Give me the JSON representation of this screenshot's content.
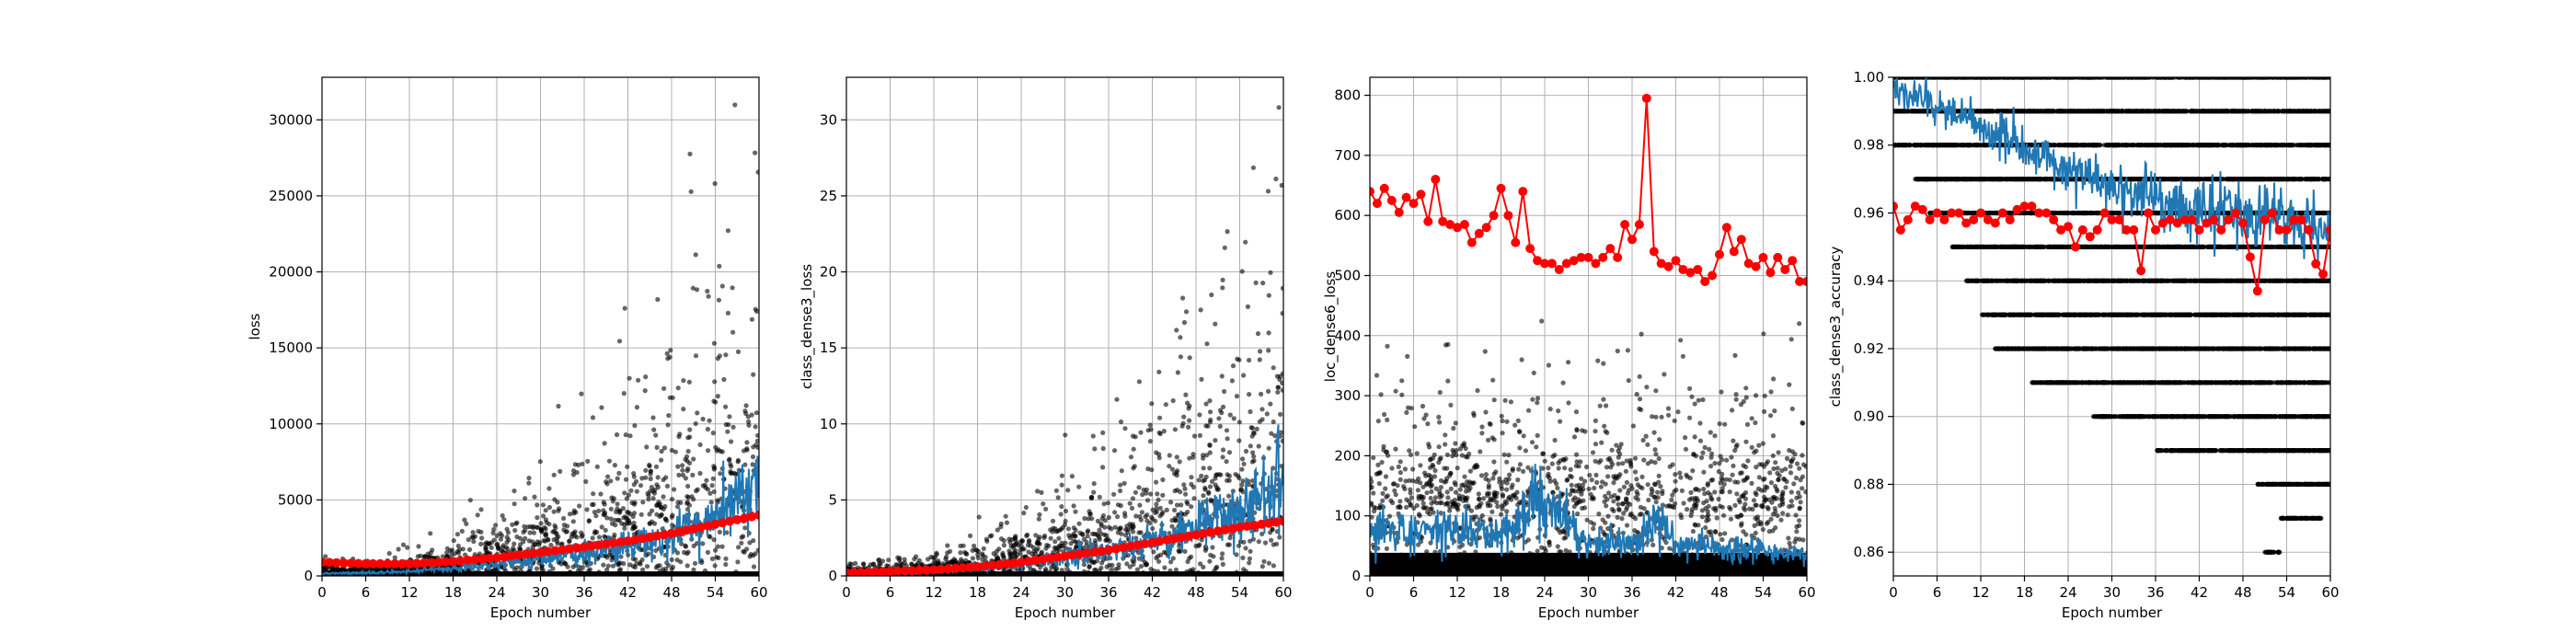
{
  "chart_data": [
    {
      "type": "scatter",
      "xlabel": "Epoch number",
      "ylabel": "loss",
      "xlim": [
        0,
        60
      ],
      "ylim": [
        0,
        32800
      ],
      "xticks": [
        0,
        6,
        12,
        18,
        24,
        30,
        36,
        42,
        48,
        54,
        60
      ],
      "yticks": [
        0,
        5000,
        10000,
        15000,
        20000,
        25000,
        30000
      ],
      "grid": true,
      "scatter_cloud": {
        "color": "#000000",
        "description_values": {
          "x_start": 0,
          "x_end": 60,
          "center_start": 200,
          "center_end": 5500,
          "spread_start": 300,
          "spread_end": 9000,
          "max": 31000
        }
      },
      "series": [
        {
          "values_type": "running",
          "color": "#1f77b4",
          "x": [
            0,
            6,
            12,
            18,
            24,
            30,
            36,
            42,
            48,
            54,
            57,
            60
          ],
          "y": [
            150,
            200,
            300,
            500,
            800,
            1100,
            1500,
            2000,
            2800,
            3800,
            5000,
            6000
          ]
        },
        {
          "values_type": "epoch",
          "color": "#ff0000",
          "x": [
            0,
            6,
            12,
            18,
            24,
            30,
            36,
            42,
            48,
            54,
            60
          ],
          "y": [
            900,
            800,
            800,
            950,
            1200,
            1550,
            1900,
            2300,
            2800,
            3400,
            4000
          ]
        }
      ]
    },
    {
      "type": "scatter",
      "xlabel": "Epoch number",
      "ylabel": "class_dense3_loss",
      "xlim": [
        0,
        60
      ],
      "ylim": [
        0,
        32.8
      ],
      "xticks": [
        0,
        6,
        12,
        18,
        24,
        30,
        36,
        42,
        48,
        54,
        60
      ],
      "yticks": [
        0,
        5,
        10,
        15,
        20,
        25,
        30
      ],
      "grid": true,
      "scatter_cloud": {
        "color": "#000000",
        "description_values": {
          "x_start": 0,
          "x_end": 60,
          "center_start": 0.2,
          "center_end": 5.5,
          "spread_start": 0.3,
          "spread_end": 9,
          "max": 31
        }
      },
      "series": [
        {
          "values_type": "running",
          "color": "#1f77b4",
          "x": [
            0,
            6,
            12,
            18,
            24,
            30,
            36,
            42,
            48,
            54,
            57,
            60
          ],
          "y": [
            0.1,
            0.2,
            0.3,
            0.5,
            0.8,
            1.2,
            1.7,
            2.3,
            3.2,
            4.3,
            5.5,
            6.5
          ]
        },
        {
          "values_type": "epoch",
          "color": "#ff0000",
          "x": [
            0,
            6,
            12,
            18,
            24,
            30,
            36,
            42,
            48,
            54,
            60
          ],
          "y": [
            0.2,
            0.3,
            0.4,
            0.6,
            0.9,
            1.3,
            1.7,
            2.2,
            2.7,
            3.2,
            3.6
          ]
        }
      ]
    },
    {
      "type": "scatter",
      "xlabel": "Epoch number",
      "ylabel": "loc_dense6_loss",
      "xlim": [
        0,
        60
      ],
      "ylim": [
        0,
        830
      ],
      "xticks": [
        0,
        6,
        12,
        18,
        24,
        30,
        36,
        42,
        48,
        54,
        60
      ],
      "yticks": [
        0,
        100,
        200,
        300,
        400,
        500,
        600,
        700,
        800
      ],
      "grid": true,
      "scatter_cloud": {
        "color": "#000000",
        "description_values": {
          "center": 110,
          "spread": 90,
          "max": 440
        }
      },
      "series": [
        {
          "values_type": "running",
          "color": "#1f77b4",
          "x": [
            0,
            6,
            12,
            18,
            24,
            30,
            36,
            40,
            42,
            48,
            54,
            60
          ],
          "y": [
            70,
            80,
            75,
            70,
            130,
            55,
            50,
            100,
            50,
            45,
            40,
            35
          ]
        },
        {
          "values_type": "epoch",
          "color": "#ff0000",
          "x": [
            0,
            1,
            2,
            3,
            4,
            5,
            6,
            7,
            8,
            9,
            10,
            11,
            12,
            13,
            14,
            15,
            16,
            17,
            18,
            19,
            20,
            21,
            22,
            23,
            24,
            25,
            26,
            27,
            28,
            29,
            30,
            31,
            32,
            33,
            34,
            35,
            36,
            37,
            38,
            39,
            40,
            41,
            42,
            43,
            44,
            45,
            46,
            47,
            48,
            49,
            50,
            51,
            52,
            53,
            54,
            55,
            56,
            57,
            58,
            59,
            60
          ],
          "y": [
            640,
            620,
            645,
            625,
            605,
            630,
            620,
            635,
            590,
            660,
            590,
            585,
            580,
            585,
            555,
            570,
            580,
            600,
            645,
            600,
            555,
            640,
            545,
            525,
            520,
            520,
            510,
            520,
            525,
            530,
            530,
            520,
            530,
            545,
            530,
            585,
            560,
            585,
            795,
            540,
            520,
            515,
            525,
            510,
            505,
            510,
            490,
            500,
            535,
            580,
            540,
            560,
            520,
            515,
            530,
            505,
            530,
            510,
            525,
            490,
            490
          ]
        }
      ]
    },
    {
      "type": "scatter",
      "xlabel": "Epoch number",
      "ylabel": "class_dense3_accuracy",
      "xlim": [
        0,
        60
      ],
      "ylim": [
        0.853,
        1.0
      ],
      "xticks": [
        0,
        6,
        12,
        18,
        24,
        30,
        36,
        42,
        48,
        54,
        60
      ],
      "yticks": [
        0.86,
        0.88,
        0.9,
        0.92,
        0.94,
        0.96,
        0.98,
        1.0
      ],
      "ytick_labels": [
        "0.86",
        "0.88",
        "0.90",
        "0.92",
        "0.94",
        "0.96",
        "0.98",
        "1.00"
      ],
      "grid": true,
      "scatter_cloud": {
        "color": "#000000",
        "levels": [
          {
            "y": 1.0,
            "x_start": 0,
            "x_end": 60
          },
          {
            "y": 0.99,
            "x_start": 0,
            "x_end": 60
          },
          {
            "y": 0.98,
            "x_start": 0,
            "x_end": 60
          },
          {
            "y": 0.97,
            "x_start": 3,
            "x_end": 60
          },
          {
            "y": 0.96,
            "x_start": 5,
            "x_end": 60
          },
          {
            "y": 0.95,
            "x_start": 8,
            "x_end": 60
          },
          {
            "y": 0.94,
            "x_start": 10,
            "x_end": 60
          },
          {
            "y": 0.93,
            "x_start": 12,
            "x_end": 60
          },
          {
            "y": 0.92,
            "x_start": 14,
            "x_end": 60
          },
          {
            "y": 0.91,
            "x_start": 19,
            "x_end": 60
          },
          {
            "y": 0.9,
            "x_start": 27,
            "x_end": 60
          },
          {
            "y": 0.89,
            "x_start": 36,
            "x_end": 60
          },
          {
            "y": 0.88,
            "x_start": 50,
            "x_end": 60
          },
          {
            "y": 0.87,
            "x_start": 53,
            "x_end": 59
          },
          {
            "y": 0.86,
            "x_start": 51,
            "x_end": 53
          }
        ]
      },
      "series": [
        {
          "values_type": "running",
          "color": "#1f77b4",
          "x": [
            0,
            6,
            12,
            18,
            24,
            30,
            36,
            42,
            48,
            54,
            60
          ],
          "y": [
            0.997,
            0.992,
            0.986,
            0.979,
            0.973,
            0.968,
            0.964,
            0.961,
            0.959,
            0.957,
            0.955
          ]
        },
        {
          "values_type": "epoch",
          "color": "#ff0000",
          "x": [
            0,
            1,
            2,
            3,
            4,
            5,
            6,
            7,
            8,
            9,
            10,
            11,
            12,
            13,
            14,
            15,
            16,
            17,
            18,
            19,
            20,
            21,
            22,
            23,
            24,
            25,
            26,
            27,
            28,
            29,
            30,
            31,
            32,
            33,
            34,
            35,
            36,
            37,
            38,
            39,
            40,
            41,
            42,
            43,
            44,
            45,
            46,
            47,
            48,
            49,
            50,
            51,
            52,
            53,
            54,
            55,
            56,
            57,
            58,
            59,
            60
          ],
          "y": [
            0.962,
            0.955,
            0.958,
            0.962,
            0.961,
            0.958,
            0.96,
            0.958,
            0.96,
            0.96,
            0.957,
            0.958,
            0.96,
            0.958,
            0.957,
            0.96,
            0.958,
            0.961,
            0.962,
            0.962,
            0.96,
            0.96,
            0.958,
            0.955,
            0.956,
            0.95,
            0.955,
            0.953,
            0.955,
            0.96,
            0.958,
            0.958,
            0.955,
            0.955,
            0.943,
            0.96,
            0.955,
            0.957,
            0.958,
            0.957,
            0.958,
            0.958,
            0.955,
            0.957,
            0.958,
            0.955,
            0.958,
            0.96,
            0.957,
            0.947,
            0.937,
            0.958,
            0.96,
            0.955,
            0.955,
            0.958,
            0.958,
            0.955,
            0.945,
            0.942,
            0.955
          ]
        }
      ]
    }
  ]
}
